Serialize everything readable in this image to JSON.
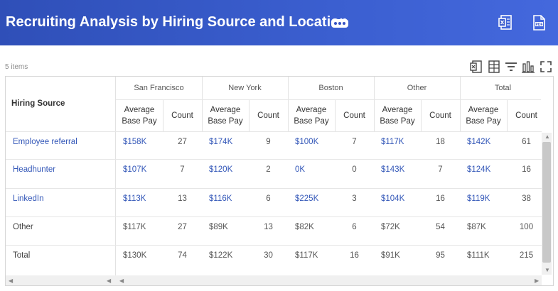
{
  "header": {
    "title": "Recruiting Analysis by Hiring Source and Location"
  },
  "toolbar": {
    "items_count": "5 items"
  },
  "icons": {
    "header": [
      "more-icon",
      "excel-export-icon",
      "pdf-export-icon"
    ],
    "toolbar": [
      "export-icon",
      "columns-icon",
      "filter-icon",
      "chart-icon",
      "fullscreen-icon"
    ]
  },
  "colors": {
    "header_bg": "#3656c6",
    "link": "#3357b8"
  },
  "table": {
    "row_header": "Hiring Source",
    "locations": [
      "San Francisco",
      "New York",
      "Boston",
      "Other",
      "Total"
    ],
    "subheaders": {
      "avg": "Average Base Pay",
      "count": "Count"
    },
    "rows": [
      {
        "label": "Employee referral",
        "link": true,
        "cells": [
          [
            "$158K",
            "27"
          ],
          [
            "$174K",
            "9"
          ],
          [
            "$100K",
            "7"
          ],
          [
            "$117K",
            "18"
          ],
          [
            "$142K",
            "61"
          ]
        ]
      },
      {
        "label": "Headhunter",
        "link": true,
        "cells": [
          [
            "$107K",
            "7"
          ],
          [
            "$120K",
            "2"
          ],
          [
            "0K",
            "0"
          ],
          [
            "$143K",
            "7"
          ],
          [
            "$124K",
            "16"
          ]
        ]
      },
      {
        "label": "LinkedIn",
        "link": true,
        "cells": [
          [
            "$113K",
            "13"
          ],
          [
            "$116K",
            "6"
          ],
          [
            "$225K",
            "3"
          ],
          [
            "$104K",
            "16"
          ],
          [
            "$119K",
            "38"
          ]
        ]
      },
      {
        "label": "Other",
        "link": false,
        "cells": [
          [
            "$117K",
            "27"
          ],
          [
            "$89K",
            "13"
          ],
          [
            "$82K",
            "6"
          ],
          [
            "$72K",
            "54"
          ],
          [
            "$87K",
            "100"
          ]
        ]
      },
      {
        "label": "Total",
        "link": false,
        "cells": [
          [
            "$130K",
            "74"
          ],
          [
            "$122K",
            "30"
          ],
          [
            "$117K",
            "16"
          ],
          [
            "$91K",
            "95"
          ],
          [
            "$111K",
            "215"
          ]
        ]
      }
    ]
  }
}
